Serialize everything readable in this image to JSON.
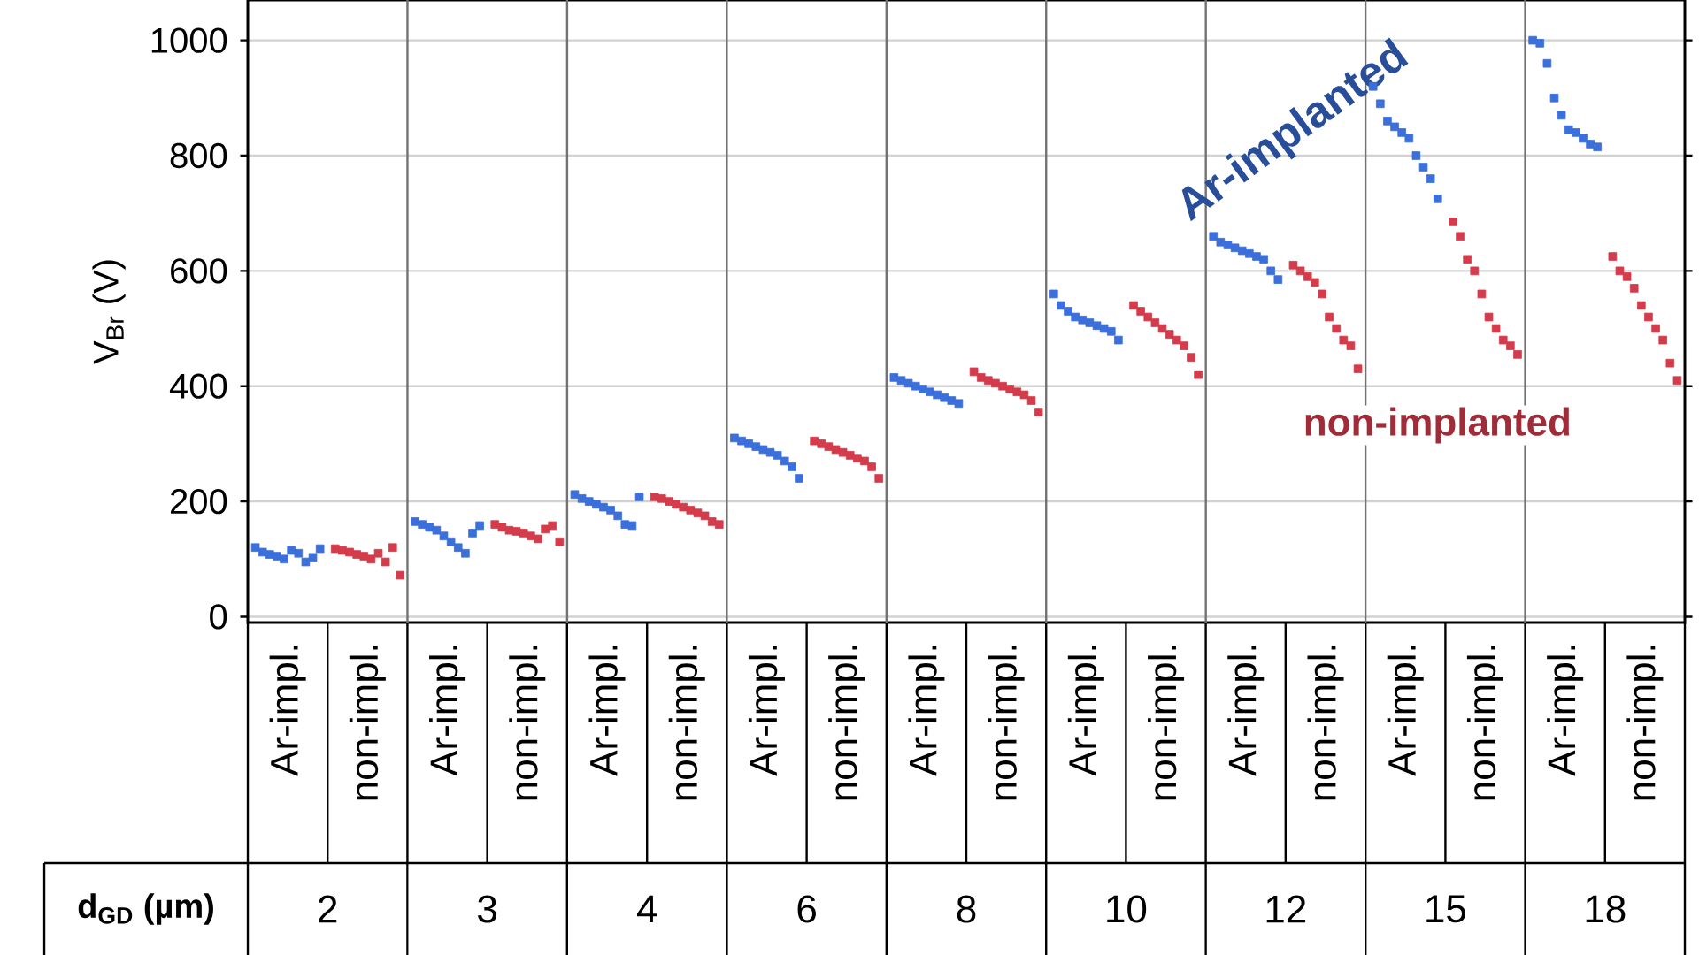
{
  "chart_data": {
    "type": "scatter",
    "ylabel": "V$_{Br}$ (V)",
    "categories": [
      "Ar-impl.",
      "non-impl.",
      "Ar-impl.",
      "non-impl.",
      "Ar-impl.",
      "non-impl.",
      "Ar-impl.",
      "non-impl.",
      "Ar-impl.",
      "non-impl.",
      "Ar-impl.",
      "non-impl.",
      "Ar-impl.",
      "non-impl.",
      "Ar-impl.",
      "non-impl.",
      "Ar-impl.",
      "non-impl."
    ],
    "series": [
      {
        "colors": [
          "#3b6fdb",
          "#d43b4b",
          "#3b6fdb",
          "#d43b4b",
          "#3b6fdb",
          "#d43b4b",
          "#3b6fdb",
          "#d43b4b",
          "#3b6fdb",
          "#d43b4b",
          "#3b6fdb",
          "#d43b4b",
          "#3b6fdb",
          "#d43b4b",
          "#3b6fdb",
          "#d43b4b",
          "#3b6fdb",
          "#d43b4b"
        ],
        "values": [
          120,
          118,
          165,
          160,
          212,
          208,
          310,
          305,
          415,
          425,
          560,
          540,
          660,
          610,
          920,
          685,
          1000,
          625
        ]
      },
      {
        "colors": [
          "#3b6fdb",
          "#d43b4b",
          "#3b6fdb",
          "#d43b4b",
          "#3b6fdb",
          "#d43b4b",
          "#3b6fdb",
          "#d43b4b",
          "#3b6fdb",
          "#d43b4b",
          "#3b6fdb",
          "#d43b4b",
          "#3b6fdb",
          "#d43b4b",
          "#3b6fdb",
          "#d43b4b",
          "#3b6fdb",
          "#d43b4b"
        ],
        "values": [
          112,
          115,
          160,
          155,
          205,
          205,
          305,
          300,
          410,
          415,
          540,
          530,
          650,
          600,
          890,
          660,
          995,
          600
        ]
      },
      {
        "colors": [
          "#3b6fdb",
          "#d43b4b",
          "#3b6fdb",
          "#d43b4b",
          "#3b6fdb",
          "#d43b4b",
          "#3b6fdb",
          "#d43b4b",
          "#3b6fdb",
          "#d43b4b",
          "#3b6fdb",
          "#d43b4b",
          "#3b6fdb",
          "#d43b4b",
          "#3b6fdb",
          "#d43b4b",
          "#3b6fdb",
          "#d43b4b"
        ],
        "values": [
          108,
          112,
          155,
          150,
          200,
          200,
          300,
          295,
          405,
          410,
          530,
          520,
          645,
          590,
          860,
          620,
          960,
          590
        ]
      },
      {
        "colors": [
          "#3b6fdb",
          "#d43b4b",
          "#3b6fdb",
          "#d43b4b",
          "#3b6fdb",
          "#d43b4b",
          "#3b6fdb",
          "#d43b4b",
          "#3b6fdb",
          "#d43b4b",
          "#3b6fdb",
          "#d43b4b",
          "#3b6fdb",
          "#d43b4b",
          "#3b6fdb",
          "#d43b4b",
          "#3b6fdb",
          "#d43b4b"
        ],
        "values": [
          105,
          108,
          150,
          148,
          195,
          195,
          295,
          290,
          400,
          405,
          520,
          510,
          640,
          580,
          850,
          600,
          900,
          570
        ]
      },
      {
        "colors": [
          "#3b6fdb",
          "#d43b4b",
          "#3b6fdb",
          "#d43b4b",
          "#3b6fdb",
          "#d43b4b",
          "#3b6fdb",
          "#d43b4b",
          "#3b6fdb",
          "#d43b4b",
          "#3b6fdb",
          "#d43b4b",
          "#3b6fdb",
          "#d43b4b",
          "#3b6fdb",
          "#d43b4b",
          "#3b6fdb",
          "#d43b4b"
        ],
        "values": [
          100,
          105,
          140,
          145,
          190,
          190,
          290,
          285,
          395,
          400,
          515,
          500,
          635,
          560,
          840,
          560,
          870,
          540
        ]
      },
      {
        "colors": [
          "#3b6fdb",
          "#d43b4b",
          "#3b6fdb",
          "#d43b4b",
          "#3b6fdb",
          "#d43b4b",
          "#3b6fdb",
          "#d43b4b",
          "#3b6fdb",
          "#d43b4b",
          "#3b6fdb",
          "#d43b4b",
          "#3b6fdb",
          "#d43b4b",
          "#3b6fdb",
          "#d43b4b",
          "#3b6fdb",
          "#d43b4b"
        ],
        "values": [
          115,
          100,
          130,
          140,
          185,
          185,
          285,
          280,
          390,
          395,
          510,
          490,
          630,
          520,
          830,
          520,
          845,
          520
        ]
      },
      {
        "colors": [
          "#3b6fdb",
          "#d43b4b",
          "#3b6fdb",
          "#d43b4b",
          "#3b6fdb",
          "#d43b4b",
          "#3b6fdb",
          "#d43b4b",
          "#3b6fdb",
          "#d43b4b",
          "#3b6fdb",
          "#d43b4b",
          "#3b6fdb",
          "#d43b4b",
          "#3b6fdb",
          "#d43b4b",
          "#3b6fdb",
          "#d43b4b"
        ],
        "values": [
          110,
          110,
          120,
          135,
          175,
          180,
          280,
          275,
          385,
          390,
          505,
          480,
          625,
          500,
          800,
          500,
          840,
          500
        ]
      },
      {
        "colors": [
          "#3b6fdb",
          "#d43b4b",
          "#3b6fdb",
          "#d43b4b",
          "#3b6fdb",
          "#d43b4b",
          "#3b6fdb",
          "#d43b4b",
          "#3b6fdb",
          "#d43b4b",
          "#3b6fdb",
          "#d43b4b",
          "#3b6fdb",
          "#d43b4b",
          "#3b6fdb",
          "#d43b4b",
          "#3b6fdb",
          "#d43b4b"
        ],
        "values": [
          95,
          95,
          110,
          152,
          160,
          175,
          270,
          270,
          380,
          385,
          500,
          470,
          620,
          480,
          780,
          480,
          830,
          480
        ]
      },
      {
        "colors": [
          "#3b6fdb",
          "#d43b4b",
          "#3b6fdb",
          "#d43b4b",
          "#3b6fdb",
          "#d43b4b",
          "#3b6fdb",
          "#d43b4b",
          "#3b6fdb",
          "#d43b4b",
          "#3b6fdb",
          "#d43b4b",
          "#3b6fdb",
          "#d43b4b",
          "#3b6fdb",
          "#d43b4b",
          "#3b6fdb",
          "#d43b4b"
        ],
        "values": [
          103,
          120,
          145,
          158,
          158,
          165,
          260,
          260,
          375,
          375,
          495,
          450,
          600,
          470,
          760,
          470,
          820,
          440
        ]
      },
      {
        "colors": [
          "#3b6fdb",
          "#d43b4b",
          "#3b6fdb",
          "#d43b4b",
          "#3b6fdb",
          "#d43b4b",
          "#3b6fdb",
          "#d43b4b",
          "#3b6fdb",
          "#d43b4b",
          "#3b6fdb",
          "#d43b4b",
          "#3b6fdb",
          "#d43b4b",
          "#3b6fdb",
          "#d43b4b",
          "#3b6fdb",
          "#d43b4b"
        ],
        "values": [
          118,
          72,
          158,
          130,
          208,
          160,
          240,
          240,
          370,
          355,
          480,
          420,
          585,
          430,
          725,
          455,
          815,
          410
        ]
      }
    ],
    "ylim": [
      -10,
      1070
    ],
    "yticks": [
      0,
      200,
      400,
      600,
      800,
      1000
    ],
    "grid": "y",
    "marker": "square",
    "annotations": [
      "**d$_{GD}$ (µm)**",
      "2",
      "3",
      "4",
      "6",
      "8",
      "10",
      "12",
      "15",
      "18",
      "**Ar-implanted**",
      "**non-implanted**"
    ]
  }
}
